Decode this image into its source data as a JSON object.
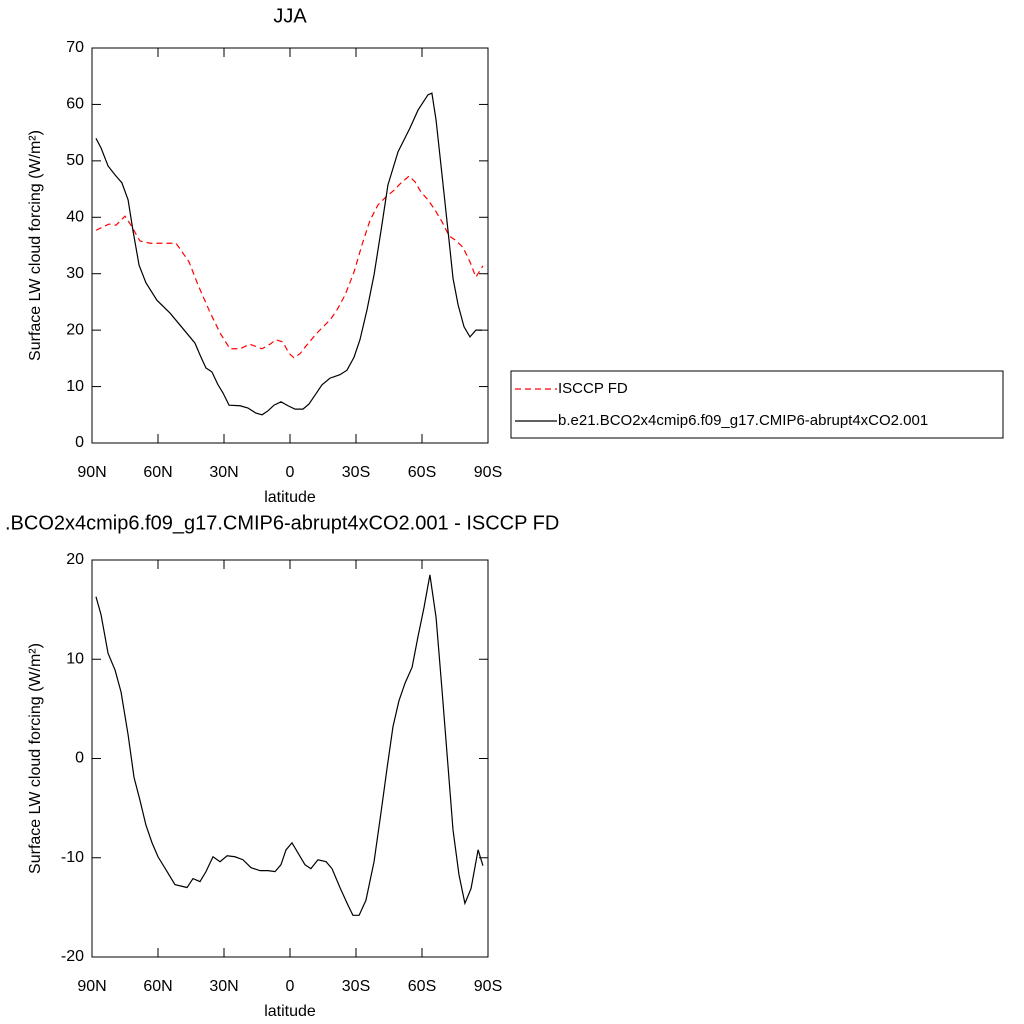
{
  "chart_data": [
    {
      "type": "line",
      "title": "JJA",
      "xlabel": "latitude",
      "ylabel": "Surface LW cloud forcing (W/m²)",
      "xlim": [
        90,
        -90
      ],
      "xticks": [
        {
          "value": 90,
          "label": "90N"
        },
        {
          "value": 60,
          "label": "60N"
        },
        {
          "value": 30,
          "label": "30N"
        },
        0,
        {
          "value": -30,
          "label": "30S"
        },
        {
          "value": -60,
          "label": "60S"
        },
        {
          "value": -90,
          "label": "90S"
        }
      ],
      "ylim": [
        0,
        70
      ],
      "yticks": [
        0,
        10,
        20,
        30,
        40,
        50,
        60,
        70
      ],
      "legend": "right",
      "series": [
        {
          "name": "ISCCP FD",
          "color": "#ff0000",
          "linestyle": "dashed",
          "x": [
            88.2,
            85.0,
            82.3,
            79.1,
            75.0,
            72.3,
            68.2,
            63.6,
            56.4,
            51.8,
            45.9,
            41.8,
            36.4,
            31.8,
            27.3,
            22.7,
            18.2,
            12.7,
            9.1,
            6.4,
            3.2,
            0.5,
            -1.8,
            -4.5,
            -7.3,
            -11.4,
            -14.5,
            -18.2,
            -21.4,
            -25.0,
            -29.1,
            -32.7,
            -36.4,
            -40.0,
            -43.6,
            -47.3,
            -50.5,
            -54.1,
            -56.8,
            -59.5,
            -62.7,
            -65.9,
            -69.1,
            -72.3,
            -75.0,
            -78.6,
            -81.8,
            -84.5,
            -87.7
          ],
          "values": [
            37.7,
            38.3,
            38.8,
            38.6,
            40.2,
            38.6,
            35.8,
            35.4,
            35.4,
            35.4,
            32.1,
            28.0,
            23.2,
            19.5,
            16.7,
            16.7,
            17.5,
            16.7,
            17.5,
            18.3,
            17.9,
            15.9,
            15.1,
            15.8,
            17.2,
            19.1,
            20.4,
            21.8,
            23.6,
            26.2,
            30.3,
            35.1,
            39.5,
            42.2,
            43.6,
            44.8,
            46.1,
            47.3,
            46.3,
            44.5,
            43.1,
            41.3,
            39.2,
            36.7,
            36.0,
            34.7,
            32.1,
            29.4,
            31.4
          ]
        },
        {
          "name": "b.e21.BCO2x4cmip6.f09_g17.CMIP6-abrupt4xCO2.001",
          "color": "#000000",
          "linestyle": "solid",
          "x": [
            88.2,
            85.9,
            82.7,
            79.5,
            76.4,
            73.6,
            71.4,
            68.6,
            65.5,
            60.5,
            54.5,
            50.0,
            43.2,
            40.9,
            38.2,
            35.5,
            32.7,
            30.5,
            27.7,
            22.7,
            19.1,
            15.5,
            12.7,
            10.0,
            7.3,
            4.1,
            0.9,
            -2.3,
            -5.9,
            -8.6,
            -11.4,
            -14.5,
            -18.2,
            -22.7,
            -25.9,
            -29.1,
            -31.8,
            -35.0,
            -38.2,
            -41.4,
            -44.5,
            -49.1,
            -54.5,
            -58.2,
            -62.7,
            -64.5,
            -66.4,
            -69.1,
            -71.8,
            -74.1,
            -76.4,
            -79.1,
            -81.8,
            -84.5,
            -87.3
          ],
          "values": [
            54.0,
            52.3,
            49.1,
            47.5,
            46.1,
            43.1,
            37.7,
            31.5,
            28.4,
            25.3,
            23.0,
            20.9,
            17.7,
            15.6,
            13.3,
            12.6,
            10.3,
            8.9,
            6.7,
            6.6,
            6.2,
            5.3,
            5.0,
            5.7,
            6.7,
            7.3,
            6.6,
            6.0,
            6.0,
            6.9,
            8.5,
            10.3,
            11.5,
            12.1,
            12.9,
            15.2,
            18.3,
            23.6,
            29.8,
            37.7,
            45.7,
            51.6,
            55.8,
            59.0,
            61.7,
            62.0,
            57.2,
            47.5,
            37.7,
            29.2,
            24.5,
            20.6,
            18.8,
            20.0,
            20.0
          ]
        }
      ]
    },
    {
      "type": "line",
      "title": ".BCO2x4cmip6.f09_g17.CMIP6-abrupt4xCO2.001 - ISCCP FD",
      "xlabel": "latitude",
      "ylabel": "Surface LW cloud forcing (W/m²)",
      "xlim": [
        90,
        -90
      ],
      "xticks": [
        {
          "value": 90,
          "label": "90N"
        },
        {
          "value": 60,
          "label": "60N"
        },
        {
          "value": 30,
          "label": "30N"
        },
        0,
        {
          "value": -30,
          "label": "30S"
        },
        {
          "value": -60,
          "label": "60S"
        },
        {
          "value": -90,
          "label": "90S"
        }
      ],
      "ylim": [
        -20,
        20
      ],
      "yticks": [
        -20,
        -10,
        0,
        10,
        20
      ],
      "series": [
        {
          "color": "#000000",
          "linestyle": "solid",
          "x": [
            88.2,
            85.9,
            82.7,
            79.5,
            76.8,
            73.6,
            70.9,
            68.2,
            65.5,
            62.7,
            60.0,
            56.4,
            52.3,
            46.8,
            44.1,
            40.9,
            38.2,
            35.0,
            31.8,
            28.6,
            25.0,
            21.4,
            17.7,
            13.6,
            10.0,
            6.8,
            4.1,
            1.8,
            -0.9,
            -3.6,
            -6.8,
            -9.5,
            -12.7,
            -16.4,
            -19.1,
            -22.7,
            -26.4,
            -28.6,
            -31.4,
            -34.5,
            -38.2,
            -41.4,
            -44.1,
            -46.8,
            -49.5,
            -52.3,
            -55.5,
            -58.2,
            -60.9,
            -63.6,
            -66.4,
            -69.1,
            -71.8,
            -74.1,
            -76.8,
            -79.5,
            -82.3,
            -85.5,
            -87.7
          ],
          "values": [
            16.3,
            14.5,
            10.6,
            8.9,
            6.7,
            2.4,
            -1.9,
            -4.2,
            -6.7,
            -8.5,
            -9.9,
            -11.2,
            -12.7,
            -13.0,
            -12.1,
            -12.4,
            -11.4,
            -9.9,
            -10.4,
            -9.8,
            -9.9,
            -10.2,
            -11.0,
            -11.3,
            -11.3,
            -11.4,
            -10.7,
            -9.2,
            -8.5,
            -9.5,
            -10.7,
            -11.1,
            -10.2,
            -10.4,
            -11.1,
            -13.0,
            -14.8,
            -15.8,
            -15.8,
            -14.3,
            -10.4,
            -5.4,
            -1.0,
            3.2,
            5.8,
            7.6,
            9.2,
            12.3,
            15.2,
            18.5,
            14.2,
            6.9,
            -0.7,
            -7.2,
            -11.7,
            -14.6,
            -13.1,
            -9.2,
            -10.8
          ]
        }
      ]
    }
  ]
}
